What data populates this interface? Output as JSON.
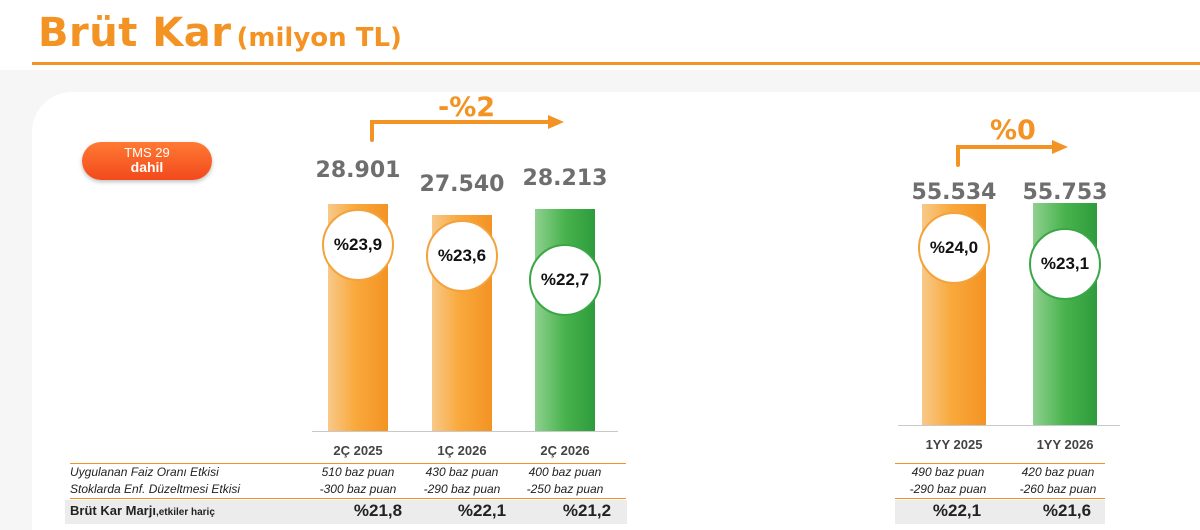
{
  "header": {
    "title": "Brüt Kar",
    "unit": "(milyon TL)"
  },
  "badge": {
    "line1": "TMS 29",
    "line2": "dahil"
  },
  "colors": {
    "accent": "#f39323",
    "orange_bar": "#f39323",
    "green_bar": "#3aa648",
    "badge": "#f2491c"
  },
  "chart_data": [
    {
      "type": "bar",
      "change_label": "-%2",
      "categories": [
        "2Ç 2025",
        "1Ç 2026",
        "2Ç 2026"
      ],
      "values": [
        28901,
        27540,
        28213
      ],
      "value_labels": [
        "28.901",
        "27.540",
        "28.213"
      ],
      "margin_labels": [
        "%23,9",
        "%23,6",
        "%22,7"
      ],
      "bar_colors": [
        "orange",
        "orange",
        "green"
      ]
    },
    {
      "type": "bar",
      "change_label": "%0",
      "categories": [
        "1YY 2025",
        "1YY 2026"
      ],
      "values": [
        55534,
        55753
      ],
      "value_labels": [
        "55.534",
        "55.753"
      ],
      "margin_labels": [
        "%24,0",
        "%23,1"
      ],
      "bar_colors": [
        "orange",
        "green"
      ]
    }
  ],
  "table": {
    "rows": [
      {
        "label": "Uygulanan Faiz Oranı Etkisi",
        "left": [
          "510 baz puan",
          "430 baz puan",
          "400 baz puan"
        ],
        "right": [
          "490 baz puan",
          "420 baz puan"
        ]
      },
      {
        "label": "Stoklarda Enf. Düzeltmesi Etkisi",
        "left": [
          "-300 baz puan",
          "-290 baz puan",
          "-250 baz puan"
        ],
        "right": [
          "-290 baz puan",
          "-260 baz puan"
        ]
      }
    ],
    "margin": {
      "label": "Brüt Kar Marjı",
      "label_suffix": ",etkiler hariç",
      "left": [
        "%21,8",
        "%22,1",
        "%21,2"
      ],
      "right": [
        "%22,1",
        "%21,6"
      ]
    }
  }
}
